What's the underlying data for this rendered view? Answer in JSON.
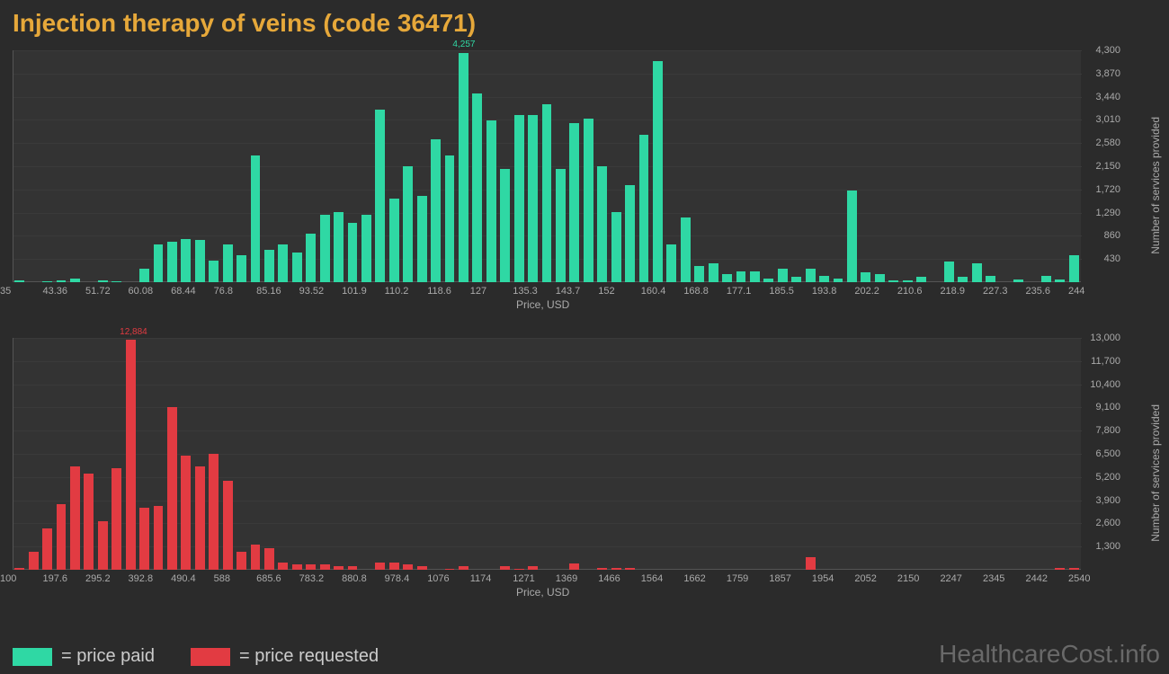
{
  "title": "Injection therapy of veins (code 36471)",
  "title_color": "#e6a83a",
  "bg_color": "#2b2b2b",
  "plot_bg_color": "#333333",
  "axis_line_color": "#555555",
  "grid_color": "#3a3a3a",
  "tick_text_color": "#aaaaaa",
  "chart1": {
    "type": "bar",
    "color": "#2fd8a4",
    "peak_label": "4,257",
    "peak_index": 32,
    "xlabel": "Price, USD",
    "ylabel": "Number of services provided",
    "x_ticks": [
      "35",
      "43.36",
      "51.72",
      "60.08",
      "68.44",
      "76.8",
      "85.16",
      "93.52",
      "101.9",
      "110.2",
      "118.6",
      "127",
      "135.3",
      "143.7",
      "152",
      "160.4",
      "168.8",
      "177.1",
      "185.5",
      "193.8",
      "202.2",
      "210.6",
      "218.9",
      "227.3",
      "235.6",
      "244"
    ],
    "y_ticks": [
      "430",
      "860",
      "1,290",
      "1,720",
      "2,150",
      "2,580",
      "3,010",
      "3,440",
      "3,870",
      "4,300"
    ],
    "y_max": 4300,
    "values": [
      30,
      0,
      20,
      30,
      60,
      0,
      40,
      20,
      0,
      250,
      700,
      750,
      800,
      780,
      400,
      700,
      500,
      2350,
      600,
      700,
      550,
      900,
      1250,
      1300,
      1100,
      1250,
      3200,
      1550,
      2150,
      1600,
      2650,
      2350,
      4257,
      3500,
      3000,
      2100,
      3100,
      3100,
      3300,
      2100,
      2950,
      3030,
      2150,
      1300,
      1800,
      2730,
      4100,
      700,
      1200,
      300,
      350,
      150,
      200,
      200,
      70,
      250,
      100,
      250,
      120,
      60,
      1700,
      180,
      150,
      30,
      40,
      100,
      0,
      380,
      100,
      350,
      120,
      0,
      50,
      0,
      120,
      50,
      500
    ]
  },
  "chart2": {
    "type": "bar",
    "color": "#e23b42",
    "peak_label": "12,884",
    "peak_index": 8,
    "xlabel": "Price, USD",
    "ylabel": "Number of services provided",
    "x_ticks": [
      "100",
      "197.6",
      "295.2",
      "392.8",
      "490.4",
      "588",
      "685.6",
      "783.2",
      "880.8",
      "978.4",
      "1076",
      "1174",
      "1271",
      "1369",
      "1466",
      "1564",
      "1662",
      "1759",
      "1857",
      "1954",
      "2052",
      "2150",
      "2247",
      "2345",
      "2442",
      "2540"
    ],
    "y_ticks": [
      "1,300",
      "2,600",
      "3,900",
      "5,200",
      "6,500",
      "7,800",
      "9,100",
      "10,400",
      "11,700",
      "13,000"
    ],
    "y_max": 13000,
    "values": [
      100,
      1000,
      2300,
      3700,
      5800,
      5400,
      2700,
      5700,
      12884,
      3500,
      3600,
      9100,
      6400,
      5800,
      6500,
      5000,
      1000,
      1400,
      1200,
      400,
      300,
      300,
      300,
      180,
      200,
      0,
      400,
      400,
      300,
      200,
      0,
      50,
      200,
      0,
      0,
      200,
      50,
      200,
      0,
      0,
      350,
      0,
      100,
      100,
      100,
      0,
      0,
      0,
      0,
      0,
      0,
      0,
      0,
      0,
      0,
      0,
      0,
      700,
      0,
      0,
      0,
      0,
      0,
      0,
      0,
      0,
      0,
      0,
      0,
      0,
      0,
      0,
      0,
      0,
      0,
      120,
      120
    ]
  },
  "legend": {
    "item1": {
      "label": "= price paid",
      "color": "#2fd8a4"
    },
    "item2": {
      "label": "= price requested",
      "color": "#e23b42"
    },
    "text_color": "#cccccc"
  },
  "watermark": {
    "text": "HealthcareCost.info",
    "color": "#707070"
  }
}
